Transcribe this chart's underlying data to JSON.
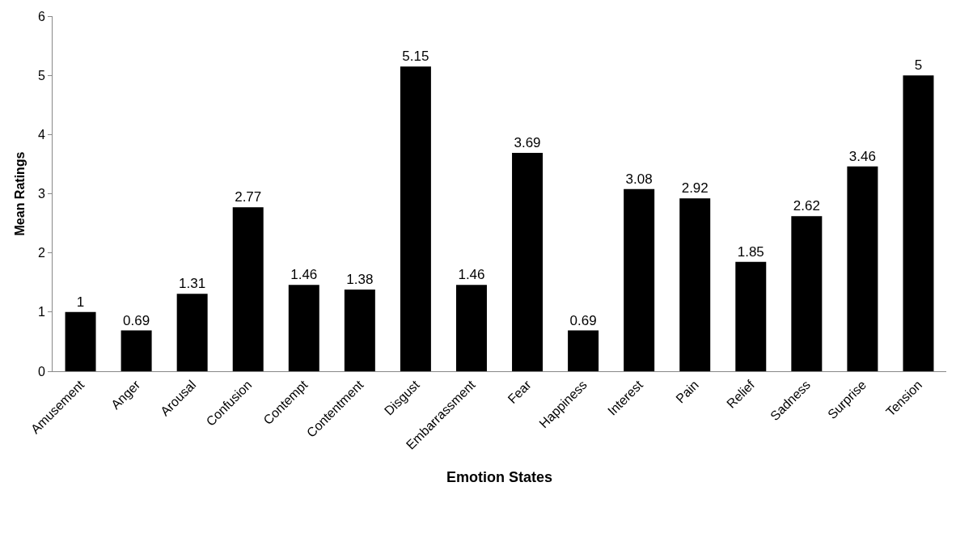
{
  "chart_data": {
    "type": "bar",
    "xlabel": "Emotion States",
    "ylabel": "Mean Ratings",
    "categories": [
      "Amusement",
      "Anger",
      "Arousal",
      "Confusion",
      "Contempt",
      "Contentment",
      "Disgust",
      "Embarrassment",
      "Fear",
      "Happiness",
      "Interest",
      "Pain",
      "Relief",
      "Sadness",
      "Surprise",
      "Tension"
    ],
    "values": [
      1,
      0.69,
      1.31,
      2.77,
      1.46,
      1.38,
      5.15,
      1.46,
      3.69,
      0.69,
      3.08,
      2.92,
      1.85,
      2.62,
      3.46,
      5
    ],
    "color": "#000000",
    "ylim": [
      0,
      6
    ],
    "yticks": [
      0,
      1,
      2,
      3,
      4,
      5,
      6
    ],
    "grid": false,
    "data_labels": true
  }
}
